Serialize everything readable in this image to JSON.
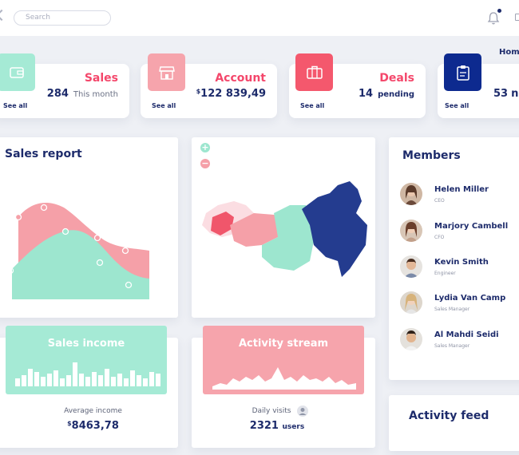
{
  "header": {
    "search_placeholder": "Search",
    "home_link": "Home"
  },
  "stats": [
    {
      "title": "Sales",
      "value": "284",
      "sub": "This month",
      "link": "See all",
      "color": "#a5ead5",
      "icon": "wallet-icon"
    },
    {
      "title": "Account",
      "currency": "$",
      "value": "122 839,49",
      "link": "See all",
      "color": "#f6a4ac",
      "icon": "store-icon"
    },
    {
      "title": "Deals",
      "value": "14",
      "sub": "pending",
      "link": "See all",
      "color": "#f4586d",
      "icon": "briefcase-icon"
    },
    {
      "value": "53",
      "sub": "ne",
      "link": "See all",
      "color": "#0d2a8f",
      "icon": "clipboard-icon"
    }
  ],
  "sales_report": {
    "title": "Sales report"
  },
  "map": {
    "zoom_in": "+",
    "zoom_out": "−"
  },
  "members": {
    "title": "Members",
    "list": [
      {
        "name": "Helen Miller",
        "role": "CEO"
      },
      {
        "name": "Marjory Cambell",
        "role": "CFO"
      },
      {
        "name": "Kevin Smith",
        "role": "Engineer"
      },
      {
        "name": "Lydia Van Camp",
        "role": "Sales Manager"
      },
      {
        "name": "Al Mahdi Seidi",
        "role": "Sales Manager"
      }
    ]
  },
  "sales_income": {
    "title": "Sales income",
    "label": "Average income",
    "currency": "$",
    "value": "8463,78",
    "color": "#a5ead5"
  },
  "activity_stream": {
    "title": "Activity stream",
    "label": "Daily visits",
    "value": "2321",
    "unit": "users",
    "color": "#f6a4ac"
  },
  "activity_feed": {
    "title": "Activity feed"
  }
}
